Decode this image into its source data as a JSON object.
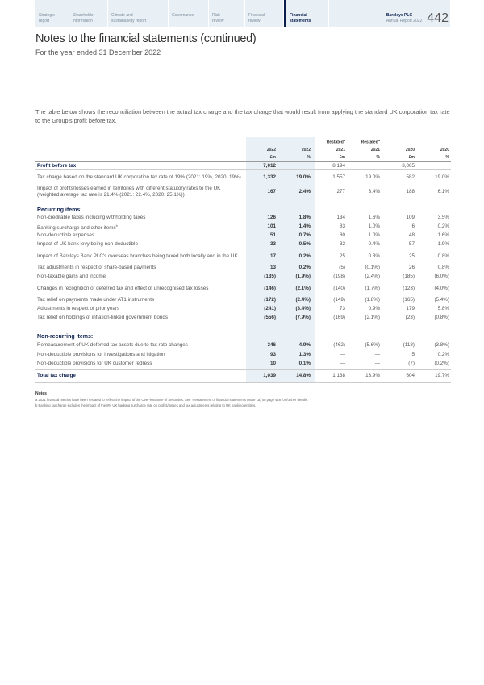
{
  "nav": {
    "items": [
      "Strategic\nreport",
      "Shareholder\ninformation",
      "Climate and\nsustainability report",
      "Governance",
      "Risk\nreview",
      "Financial\nreview",
      "Financial\nstatements"
    ],
    "active": 6,
    "brand": "Barclays PLC",
    "report": "Annual Report 2022",
    "page": "442"
  },
  "title": "Notes to the financial statements (continued)",
  "subtitle": "For the year ended 31 December 2022",
  "intro": "The table below shows the reconciliation between the actual tax charge and the tax charge that would result from applying the standard UK corporation tax rate to the Group's profit before tax.",
  "table": {
    "restated": [
      "",
      "",
      "Restated",
      "Restated",
      "",
      ""
    ],
    "restated_sup": "a",
    "years": [
      "2022",
      "2022",
      "2021",
      "2021",
      "2020",
      "2020"
    ],
    "units": [
      "£m",
      "%",
      "£m",
      "%",
      "£m",
      "%"
    ],
    "rows": [
      {
        "label": "Profit before tax",
        "v": [
          "7,012",
          "",
          "8,194",
          "",
          "3,065",
          ""
        ],
        "type": "pb"
      },
      {
        "label": "Tax charge based on the standard UK corporation tax rate of 19% (2021: 19%, 2020: 19%)",
        "v": [
          "1,332",
          "19.0%",
          "1,557",
          "19.0%",
          "582",
          "19.0%"
        ]
      },
      {
        "label": "Impact of profits/losses earned in territories with different statutory rates to the UK (weighted average tax rate is 21.4% (2021: 22.4%, 2020: 25.1%))",
        "v": [
          "167",
          "2.4%",
          "277",
          "3.4%",
          "188",
          "6.1%"
        ]
      },
      {
        "label": "Recurring items:",
        "type": "sec"
      },
      {
        "label": "Non-creditable taxes including withholding taxes",
        "v": [
          "126",
          "1.8%",
          "134",
          "1.6%",
          "109",
          "3.5%"
        ]
      },
      {
        "label": "Banking surcharge and other items",
        "sup": "b",
        "v": [
          "101",
          "1.4%",
          "83",
          "1.0%",
          "6",
          "0.2%"
        ]
      },
      {
        "label": "Non-deductible expenses",
        "v": [
          "51",
          "0.7%",
          "80",
          "1.0%",
          "48",
          "1.6%"
        ]
      },
      {
        "label": "Impact of UK bank levy being non-deductible",
        "v": [
          "33",
          "0.5%",
          "32",
          "0.4%",
          "57",
          "1.9%"
        ]
      },
      {
        "label": "Impact of Barclays Bank PLC's overseas branches being taxed both locally and in the UK",
        "v": [
          "17",
          "0.2%",
          "25",
          "0.3%",
          "25",
          "0.8%"
        ]
      },
      {
        "label": "Tax adjustments in respect of share-based payments",
        "v": [
          "13",
          "0.2%",
          "(5)",
          "(0.1%)",
          "26",
          "0.8%"
        ]
      },
      {
        "label": "Non-taxable gains and income",
        "v": [
          "(135)",
          "(1.9%)",
          "(198)",
          "(2.4%)",
          "(185)",
          "(6.0%)"
        ]
      },
      {
        "label": "Changes in recognition of deferred tax and effect of unrecognised tax losses",
        "v": [
          "(146)",
          "(2.1%)",
          "(140)",
          "(1.7%)",
          "(123)",
          "(4.0%)"
        ]
      },
      {
        "label": "Tax relief on payments made under AT1 instruments",
        "v": [
          "(172)",
          "(2.4%)",
          "(149)",
          "(1.8%)",
          "(165)",
          "(5.4%)"
        ]
      },
      {
        "label": "Adjustments in respect of prior years",
        "v": [
          "(241)",
          "(3.4%)",
          "73",
          "0.9%",
          "179",
          "5.8%"
        ]
      },
      {
        "label": "Tax relief on holdings of inflation-linked government bonds",
        "v": [
          "(556)",
          "(7.9%)",
          "(169)",
          "(2.1%)",
          "(23)",
          "(0.8%)"
        ]
      },
      {
        "label": "Non-recurring items:",
        "type": "sec"
      },
      {
        "label": "Remeasurement of UK deferred tax assets due to tax rate changes",
        "v": [
          "346",
          "4.9%",
          "(462)",
          "(5.6%)",
          "(118)",
          "(3.8%)"
        ]
      },
      {
        "label": "Non-deductible provisions for investigations and litigation",
        "v": [
          "93",
          "1.3%",
          "—",
          "—",
          "5",
          "0.2%"
        ]
      },
      {
        "label": "Non-deductible provisions for UK customer redress",
        "v": [
          "10",
          "0.1%",
          "—",
          "—",
          "(7)",
          "(0.2%)"
        ]
      },
      {
        "label": "Total tax charge",
        "v": [
          "1,039",
          "14.8%",
          "1,138",
          "13.9%",
          "604",
          "19.7%"
        ],
        "type": "tot"
      }
    ]
  },
  "notes": {
    "title": "Notes",
    "items": [
      "a  2021 financial metrics have been restated to reflect the impact of the Over-issuance of Securities. See 'Restatement of financial statements (Note 1a) on page 428 for further details.",
      "b  Banking surcharge includes the impact of the 8% UK banking surcharge rate on profits/losses and tax adjustments relating to UK banking entities."
    ]
  }
}
